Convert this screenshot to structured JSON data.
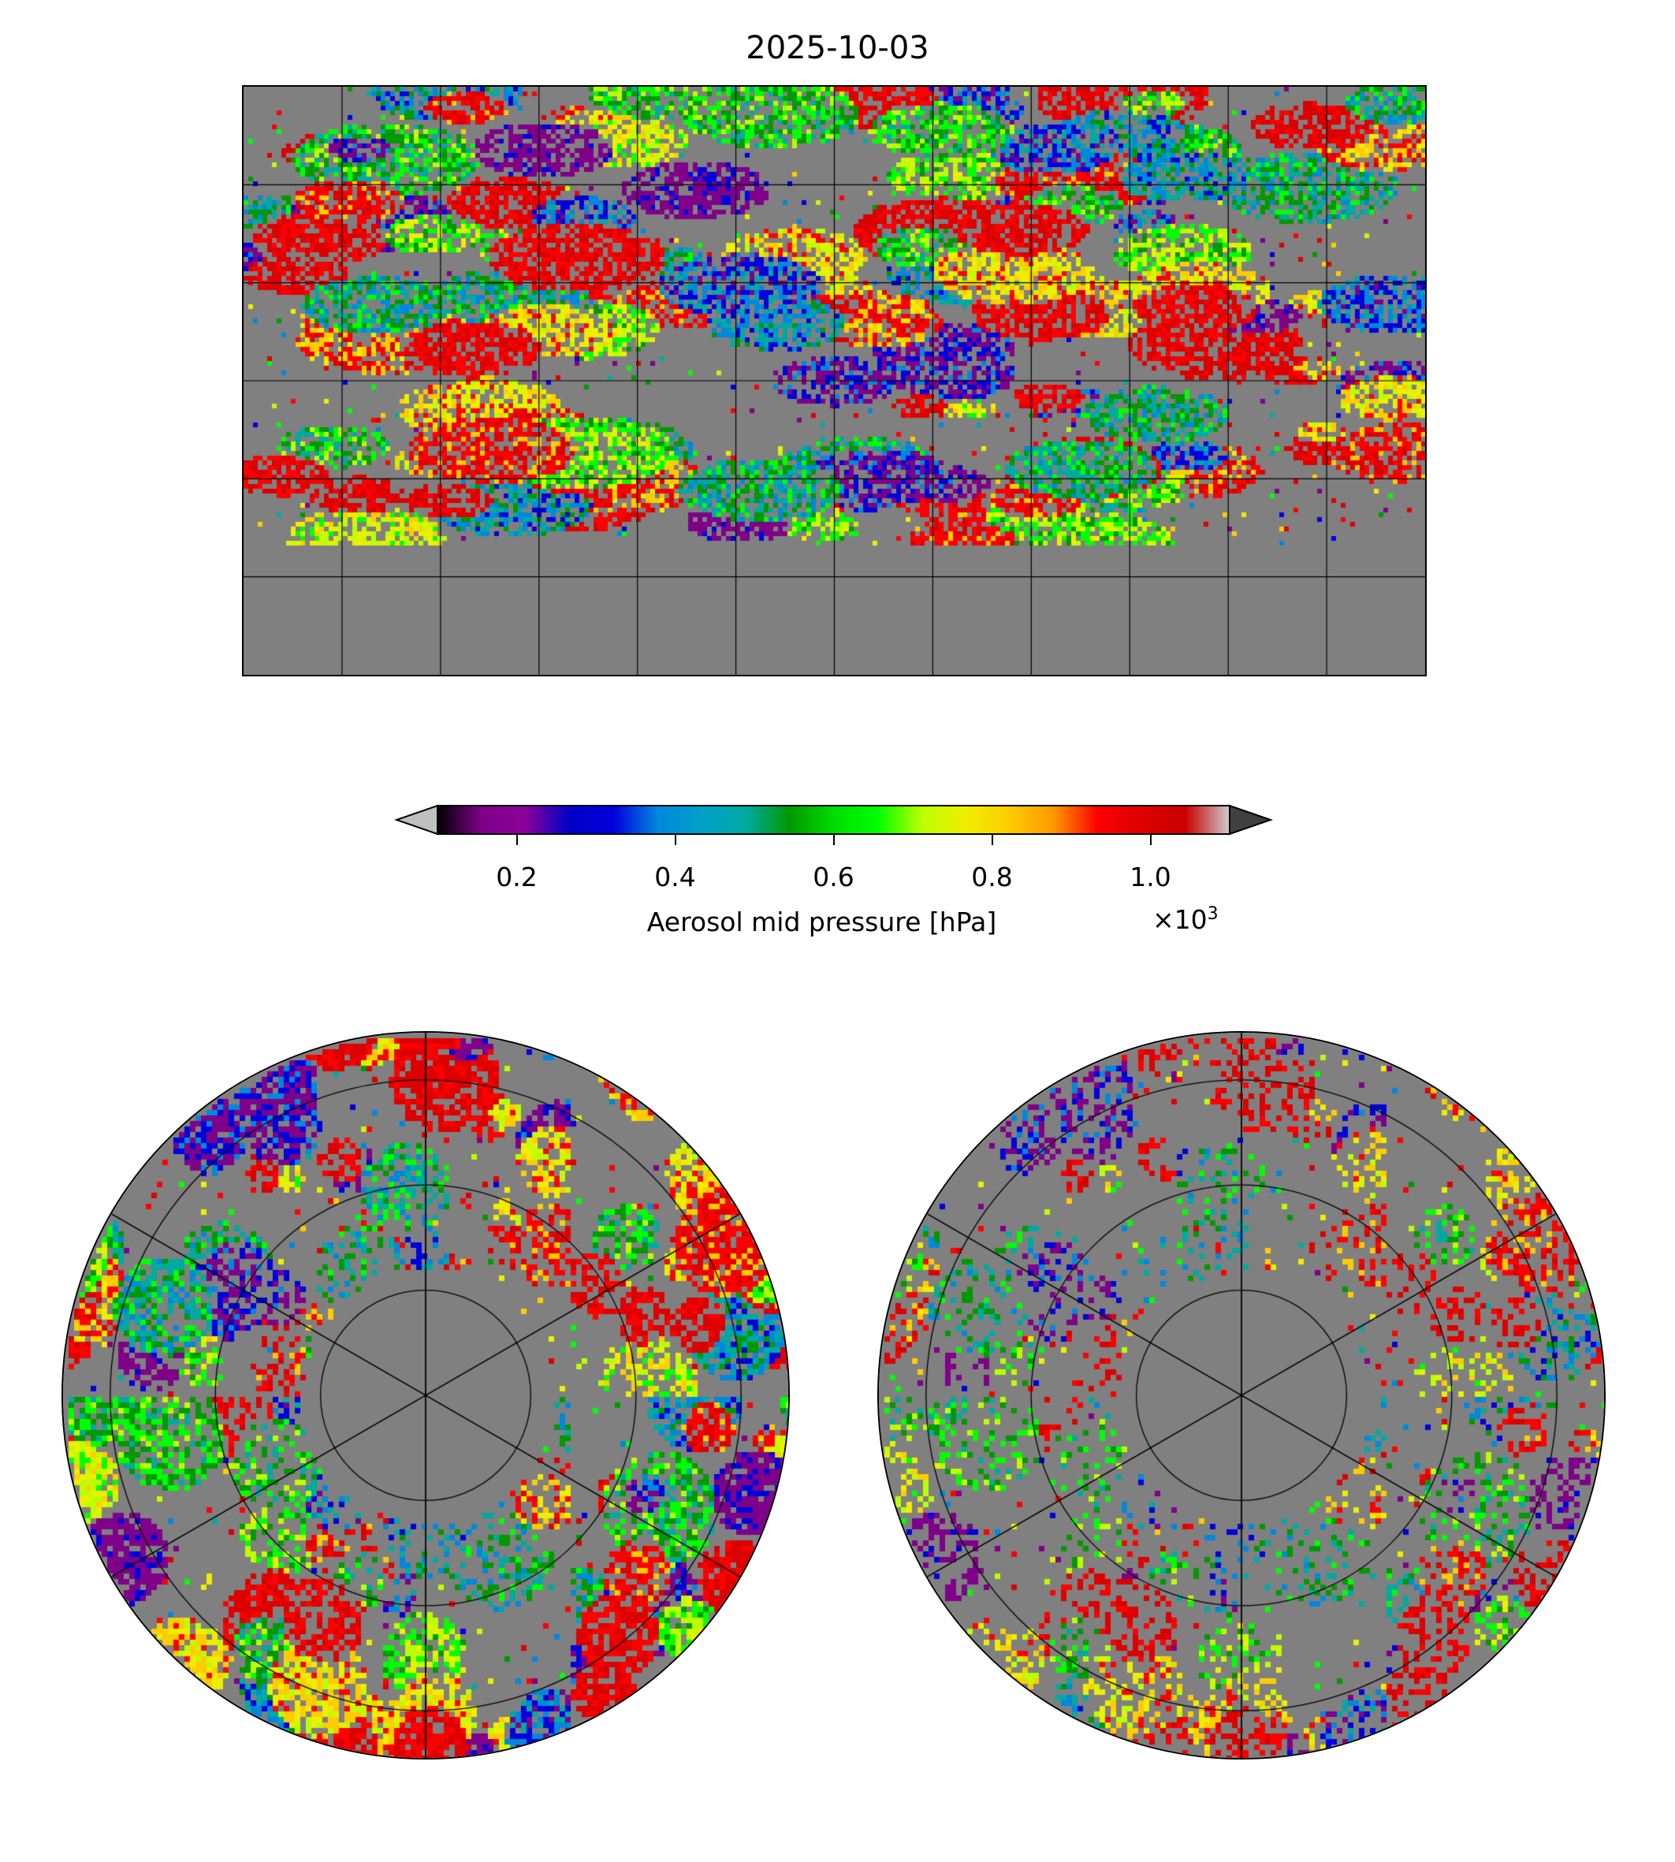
{
  "chart_data": {
    "type": "heatmap",
    "title": "2025-10-03",
    "panels": [
      {
        "name": "global",
        "projection": "equirectangular",
        "lon_range": [
          -180,
          180
        ],
        "lat_range": [
          -90,
          90
        ],
        "gridline_spacing_deg": 30
      },
      {
        "name": "north-polar",
        "projection": "north-polar-stereographic",
        "gridline_spacing_deg": 30
      },
      {
        "name": "south-polar",
        "projection": "south-polar-stereographic",
        "gridline_spacing_deg": 30
      }
    ],
    "colorbar": {
      "label": "Aerosol mid pressure [hPa]",
      "multiplier": "×10",
      "multiplier_exp": "3",
      "range": [
        0.1,
        1.1
      ],
      "ticks": [
        0.2,
        0.4,
        0.6,
        0.8,
        1.0
      ],
      "tick_labels": [
        "0.2",
        "0.4",
        "0.6",
        "0.8",
        "1.0"
      ],
      "extend": "both",
      "under_color": "#c0c0c0",
      "over_color": "#404040",
      "missing_color": "#808080",
      "colormap_stops": [
        "#000000",
        "#7f0089",
        "#8a0099",
        "#0000c8",
        "#0000dd",
        "#0088dd",
        "#00a0c8",
        "#00aaa0",
        "#009900",
        "#00dd00",
        "#00ff00",
        "#bbff00",
        "#eeee00",
        "#ffcc00",
        "#ff9900",
        "#ff0000",
        "#dd0000",
        "#cc0000",
        "#cccccc"
      ]
    }
  }
}
